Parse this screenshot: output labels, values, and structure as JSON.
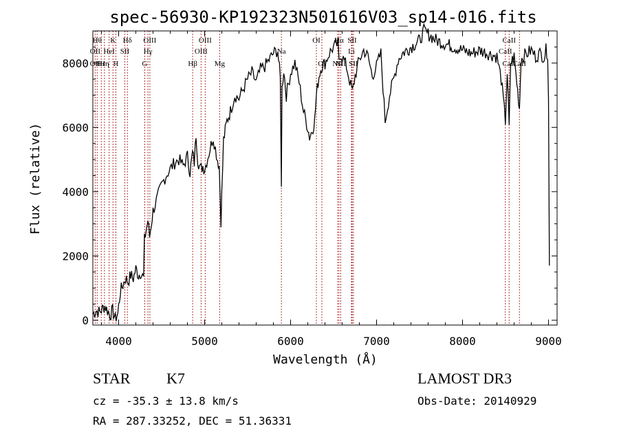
{
  "chart_data": {
    "type": "line",
    "title": "spec-56930-KP192323N501616V03_sp14-016.fits",
    "xlabel": "Wavelength (Å)",
    "ylabel": "Flux (relative)",
    "xlim": [
      3700,
      9100
    ],
    "ylim": [
      -150,
      9000
    ],
    "x_ticks": [
      4000,
      5000,
      6000,
      7000,
      8000,
      9000
    ],
    "y_ticks": [
      0,
      2000,
      4000,
      6000,
      8000
    ],
    "grid": false,
    "series": [
      {
        "name": "spectrum",
        "x": [
          3700,
          3740,
          3780,
          3810,
          3840,
          3870,
          3900,
          3930,
          3960,
          3990,
          4020,
          4050,
          4080,
          4110,
          4140,
          4170,
          4200,
          4230,
          4260,
          4290,
          4300,
          4320,
          4340,
          4360,
          4400,
          4450,
          4500,
          4550,
          4600,
          4650,
          4700,
          4750,
          4800,
          4830,
          4860,
          4880,
          4900,
          4920,
          4950,
          4980,
          5000,
          5050,
          5100,
          5150,
          5170,
          5190,
          5220,
          5260,
          5300,
          5350,
          5400,
          5450,
          5500,
          5550,
          5600,
          5650,
          5700,
          5750,
          5800,
          5850,
          5880,
          5893,
          5900,
          5920,
          5950,
          6000,
          6050,
          6100,
          6150,
          6200,
          6220,
          6250,
          6280,
          6300,
          6330,
          6360,
          6400,
          6450,
          6500,
          6550,
          6563,
          6580,
          6600,
          6650,
          6700,
          6720,
          6750,
          6800,
          6850,
          6900,
          6950,
          7000,
          7050,
          7100,
          7150,
          7200,
          7250,
          7300,
          7400,
          7500,
          7550,
          7600,
          7700,
          7800,
          7900,
          8000,
          8100,
          8200,
          8300,
          8400,
          8450,
          8498,
          8520,
          8542,
          8560,
          8600,
          8662,
          8680,
          8700,
          8750,
          8800,
          8850,
          8900,
          8950,
          8970,
          8990,
          9000,
          9010
        ],
        "values": [
          200,
          300,
          250,
          350,
          450,
          300,
          150,
          300,
          50,
          200,
          900,
          1100,
          1300,
          1200,
          1400,
          1300,
          1600,
          1400,
          1500,
          1300,
          2500,
          2800,
          3100,
          2600,
          3400,
          3800,
          4200,
          4500,
          4700,
          4900,
          5000,
          4800,
          5100,
          4600,
          5200,
          4900,
          5800,
          5000,
          4700,
          4800,
          4700,
          5200,
          5700,
          5000,
          4800,
          3100,
          5600,
          6200,
          6500,
          7000,
          6900,
          7200,
          7500,
          7700,
          7400,
          7800,
          7900,
          8100,
          8300,
          8400,
          7500,
          4300,
          7200,
          7800,
          7000,
          7700,
          8000,
          7400,
          6500,
          6000,
          5700,
          5900,
          6200,
          7000,
          7600,
          7900,
          8000,
          8300,
          8500,
          8600,
          8000,
          8300,
          8200,
          7900,
          7300,
          7100,
          7600,
          8100,
          8400,
          8200,
          7600,
          7900,
          8300,
          6200,
          7000,
          7500,
          8100,
          8300,
          8500,
          8700,
          9000,
          8900,
          8700,
          8600,
          8500,
          8400,
          8300,
          8400,
          8300,
          8200,
          7500,
          6200,
          7700,
          6000,
          8000,
          8200,
          6600,
          8100,
          8200,
          8300,
          8400,
          8200,
          8300,
          8200,
          8400,
          8300,
          7000,
          1700
        ]
      }
    ],
    "lines": [
      {
        "wavelength": 3750,
        "label": "Hθ",
        "row": 1
      },
      {
        "wavelength": 3727,
        "label": "OII",
        "row": 2
      },
      {
        "wavelength": 3727,
        "label": "OII",
        "row": 3
      },
      {
        "wavelength": 3798,
        "label": "Hε",
        "row": 3
      },
      {
        "wavelength": 3835,
        "label": "Hη",
        "row": 3
      },
      {
        "wavelength": 3889,
        "label": "HeI",
        "row": 2
      },
      {
        "wavelength": 3934,
        "label": "K",
        "row": 1
      },
      {
        "wavelength": 3968,
        "label": "H",
        "row": 3
      },
      {
        "wavelength": 4072,
        "label": "SII",
        "row": 2
      },
      {
        "wavelength": 4102,
        "label": "Hδ",
        "row": 1
      },
      {
        "wavelength": 4304,
        "label": "G",
        "row": 3
      },
      {
        "wavelength": 4341,
        "label": "Hγ",
        "row": 2
      },
      {
        "wavelength": 4363,
        "label": "OIII",
        "row": 1
      },
      {
        "wavelength": 4861,
        "label": "Hβ",
        "row": 3
      },
      {
        "wavelength": 4959,
        "label": "OIII",
        "row": 2
      },
      {
        "wavelength": 5007,
        "label": "OIII",
        "row": 1
      },
      {
        "wavelength": 5175,
        "label": "Mg",
        "row": 3
      },
      {
        "wavelength": 5893,
        "label": "Na",
        "row": 2
      },
      {
        "wavelength": 6300,
        "label": "OI",
        "row": 1
      },
      {
        "wavelength": 6364,
        "label": "OI",
        "row": 3
      },
      {
        "wavelength": 6548,
        "label": "NII",
        "row": 3
      },
      {
        "wavelength": 6563,
        "label": "Hα",
        "row": 1
      },
      {
        "wavelength": 6583,
        "label": "NII",
        "row": 3
      },
      {
        "wavelength": 6708,
        "label": "Li",
        "row": 2
      },
      {
        "wavelength": 6716,
        "label": "SII",
        "row": 1
      },
      {
        "wavelength": 6731,
        "label": "SII",
        "row": 3
      },
      {
        "wavelength": 8498,
        "label": "CaII",
        "row": 2
      },
      {
        "wavelength": 8542,
        "label": "CaII",
        "row": 1
      },
      {
        "wavelength": 8542,
        "label": "CaII",
        "row": 3
      },
      {
        "wavelength": 8662,
        "label": "CaII",
        "row": 3
      }
    ]
  },
  "info": {
    "class_label": "STAR",
    "subclass": "K7",
    "survey": "LAMOST DR3",
    "redshift_line": "cz = -35.3 ± 13.8 km/s",
    "obs_date": "Obs-Date: 20140929",
    "coords": "RA = 287.33252, DEC =  51.36331"
  },
  "colors": {
    "line_marker": "#b03030",
    "spectrum": "#000000"
  }
}
